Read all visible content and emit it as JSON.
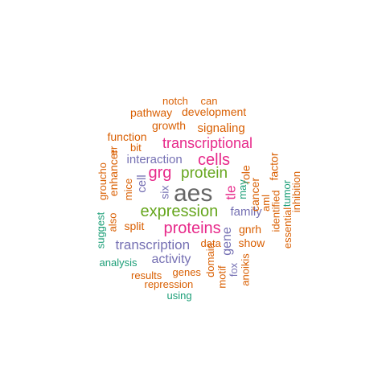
{
  "palette": {
    "gray": "#666666",
    "orange": "#D95F02",
    "magenta": "#E7298A",
    "green": "#66A61E",
    "purple": "#7570B3",
    "teal": "#1B9E77"
  },
  "words": [
    {
      "text": "aes",
      "color": "gray",
      "weight": 1.0
    },
    {
      "text": "expression",
      "color": "green",
      "weight": 0.66
    },
    {
      "text": "proteins",
      "color": "magenta",
      "weight": 0.66
    },
    {
      "text": "cells",
      "color": "magenta",
      "weight": 0.66
    },
    {
      "text": "grg",
      "color": "magenta",
      "weight": 0.66
    },
    {
      "text": "protein",
      "color": "green",
      "weight": 0.66
    },
    {
      "text": "transcriptional",
      "color": "magenta",
      "weight": 0.57
    },
    {
      "text": "transcription",
      "color": "purple",
      "weight": 0.5
    },
    {
      "text": "tle",
      "color": "magenta",
      "weight": 0.5
    },
    {
      "text": "family",
      "color": "purple",
      "weight": 0.46
    },
    {
      "text": "activity",
      "color": "purple",
      "weight": 0.46
    },
    {
      "text": "interaction",
      "color": "purple",
      "weight": 0.46
    },
    {
      "text": "cell",
      "color": "purple",
      "weight": 0.46
    },
    {
      "text": "gene",
      "color": "purple",
      "weight": 0.46
    },
    {
      "text": "signaling",
      "color": "orange",
      "weight": 0.4
    },
    {
      "text": "growth",
      "color": "orange",
      "weight": 0.4
    },
    {
      "text": "six",
      "color": "purple",
      "weight": 0.4
    },
    {
      "text": "development",
      "color": "orange",
      "weight": 0.36
    },
    {
      "text": "pathway",
      "color": "orange",
      "weight": 0.36
    },
    {
      "text": "function",
      "color": "orange",
      "weight": 0.36
    },
    {
      "text": "enhancer",
      "color": "orange",
      "weight": 0.36
    },
    {
      "text": "split",
      "color": "orange",
      "weight": 0.36
    },
    {
      "text": "show",
      "color": "orange",
      "weight": 0.36
    },
    {
      "text": "gnrh",
      "color": "orange",
      "weight": 0.36
    },
    {
      "text": "cancer",
      "color": "orange",
      "weight": 0.36
    },
    {
      "text": "mice",
      "color": "orange",
      "weight": 0.36
    },
    {
      "text": "role",
      "color": "orange",
      "weight": 0.36
    },
    {
      "text": "factor",
      "color": "orange",
      "weight": 0.36
    },
    {
      "text": "notch",
      "color": "orange",
      "weight": 0.3
    },
    {
      "text": "can",
      "color": "orange",
      "weight": 0.3
    },
    {
      "text": "bit",
      "color": "orange",
      "weight": 0.3
    },
    {
      "text": "er",
      "color": "orange",
      "weight": 0.3
    },
    {
      "text": "groucho",
      "color": "orange",
      "weight": 0.3
    },
    {
      "text": "also",
      "color": "orange",
      "weight": 0.3
    },
    {
      "text": "may",
      "color": "teal",
      "weight": 0.3
    },
    {
      "text": "aml",
      "color": "orange",
      "weight": 0.3
    },
    {
      "text": "identified",
      "color": "orange",
      "weight": 0.3
    },
    {
      "text": "tumor",
      "color": "teal",
      "weight": 0.3
    },
    {
      "text": "essential",
      "color": "orange",
      "weight": 0.3
    },
    {
      "text": "inhibition",
      "color": "orange",
      "weight": 0.3
    },
    {
      "text": "data",
      "color": "orange",
      "weight": 0.3
    },
    {
      "text": "domain",
      "color": "orange",
      "weight": 0.3
    },
    {
      "text": "suggest",
      "color": "teal",
      "weight": 0.3
    },
    {
      "text": "analysis",
      "color": "teal",
      "weight": 0.3
    },
    {
      "text": "genes",
      "color": "orange",
      "weight": 0.3
    },
    {
      "text": "results",
      "color": "orange",
      "weight": 0.3
    },
    {
      "text": "repression",
      "color": "orange",
      "weight": 0.3
    },
    {
      "text": "motif",
      "color": "orange",
      "weight": 0.3
    },
    {
      "text": "fox",
      "color": "purple",
      "weight": 0.3
    },
    {
      "text": "anoikis",
      "color": "orange",
      "weight": 0.3
    },
    {
      "text": "using",
      "color": "teal",
      "weight": 0.3
    }
  ]
}
